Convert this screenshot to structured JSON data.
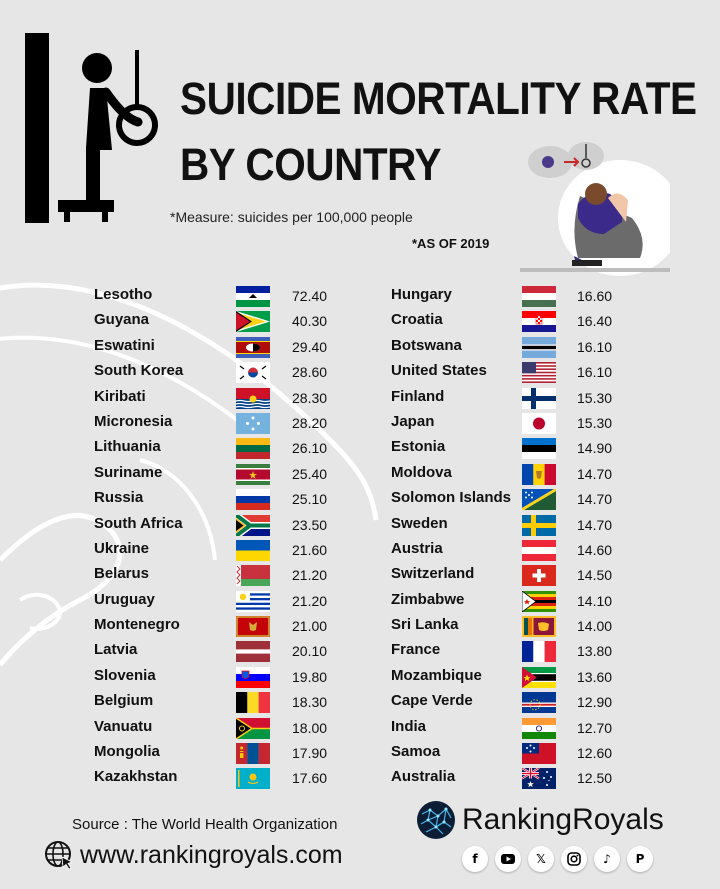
{
  "title_line1": "SUICIDE MORTALITY RATE",
  "title_line2": "BY COUNTRY",
  "measure": "*Measure: suicides per 100,000 people",
  "as_of": "*AS OF 2019",
  "left_column": [
    {
      "country": "Lesotho",
      "value": "72.40"
    },
    {
      "country": "Guyana",
      "value": "40.30"
    },
    {
      "country": "Eswatini",
      "value": "29.40"
    },
    {
      "country": "South Korea",
      "value": "28.60"
    },
    {
      "country": "Kiribati",
      "value": "28.30"
    },
    {
      "country": "Micronesia",
      "value": "28.20"
    },
    {
      "country": "Lithuania",
      "value": "26.10"
    },
    {
      "country": "Suriname",
      "value": "25.40"
    },
    {
      "country": "Russia",
      "value": "25.10"
    },
    {
      "country": "South Africa",
      "value": "23.50"
    },
    {
      "country": "Ukraine",
      "value": "21.60"
    },
    {
      "country": "Belarus",
      "value": "21.20"
    },
    {
      "country": "Uruguay",
      "value": "21.20"
    },
    {
      "country": "Montenegro",
      "value": "21.00"
    },
    {
      "country": "Latvia",
      "value": "20.10"
    },
    {
      "country": "Slovenia",
      "value": "19.80"
    },
    {
      "country": "Belgium",
      "value": "18.30"
    },
    {
      "country": "Vanuatu",
      "value": "18.00"
    },
    {
      "country": "Mongolia",
      "value": "17.90"
    },
    {
      "country": "Kazakhstan",
      "value": "17.60"
    }
  ],
  "right_column": [
    {
      "country": "Hungary",
      "value": "16.60"
    },
    {
      "country": "Croatia",
      "value": "16.40"
    },
    {
      "country": "Botswana",
      "value": "16.10"
    },
    {
      "country": "United States",
      "value": "16.10"
    },
    {
      "country": "Finland",
      "value": "15.30"
    },
    {
      "country": "Japan",
      "value": "15.30"
    },
    {
      "country": "Estonia",
      "value": "14.90"
    },
    {
      "country": "Moldova",
      "value": "14.70"
    },
    {
      "country": "Solomon Islands",
      "value": "14.70"
    },
    {
      "country": "Sweden",
      "value": "14.70"
    },
    {
      "country": "Austria",
      "value": "14.60"
    },
    {
      "country": "Switzerland",
      "value": "14.50"
    },
    {
      "country": "Zimbabwe",
      "value": "14.10"
    },
    {
      "country": "Sri Lanka",
      "value": "14.00"
    },
    {
      "country": "France",
      "value": "13.80"
    },
    {
      "country": "Mozambique",
      "value": "13.60"
    },
    {
      "country": "Cape Verde",
      "value": "12.90"
    },
    {
      "country": "India",
      "value": "12.70"
    },
    {
      "country": "Samoa",
      "value": "12.60"
    },
    {
      "country": "Australia",
      "value": "12.50"
    }
  ],
  "source": "Source : The World Health Organization",
  "website": "www.rankingroyals.com",
  "brand": "RankingRoyals",
  "social_icons": [
    "facebook-icon",
    "youtube-icon",
    "x-icon",
    "instagram-icon",
    "tiktok-icon",
    "pinterest-icon"
  ]
}
